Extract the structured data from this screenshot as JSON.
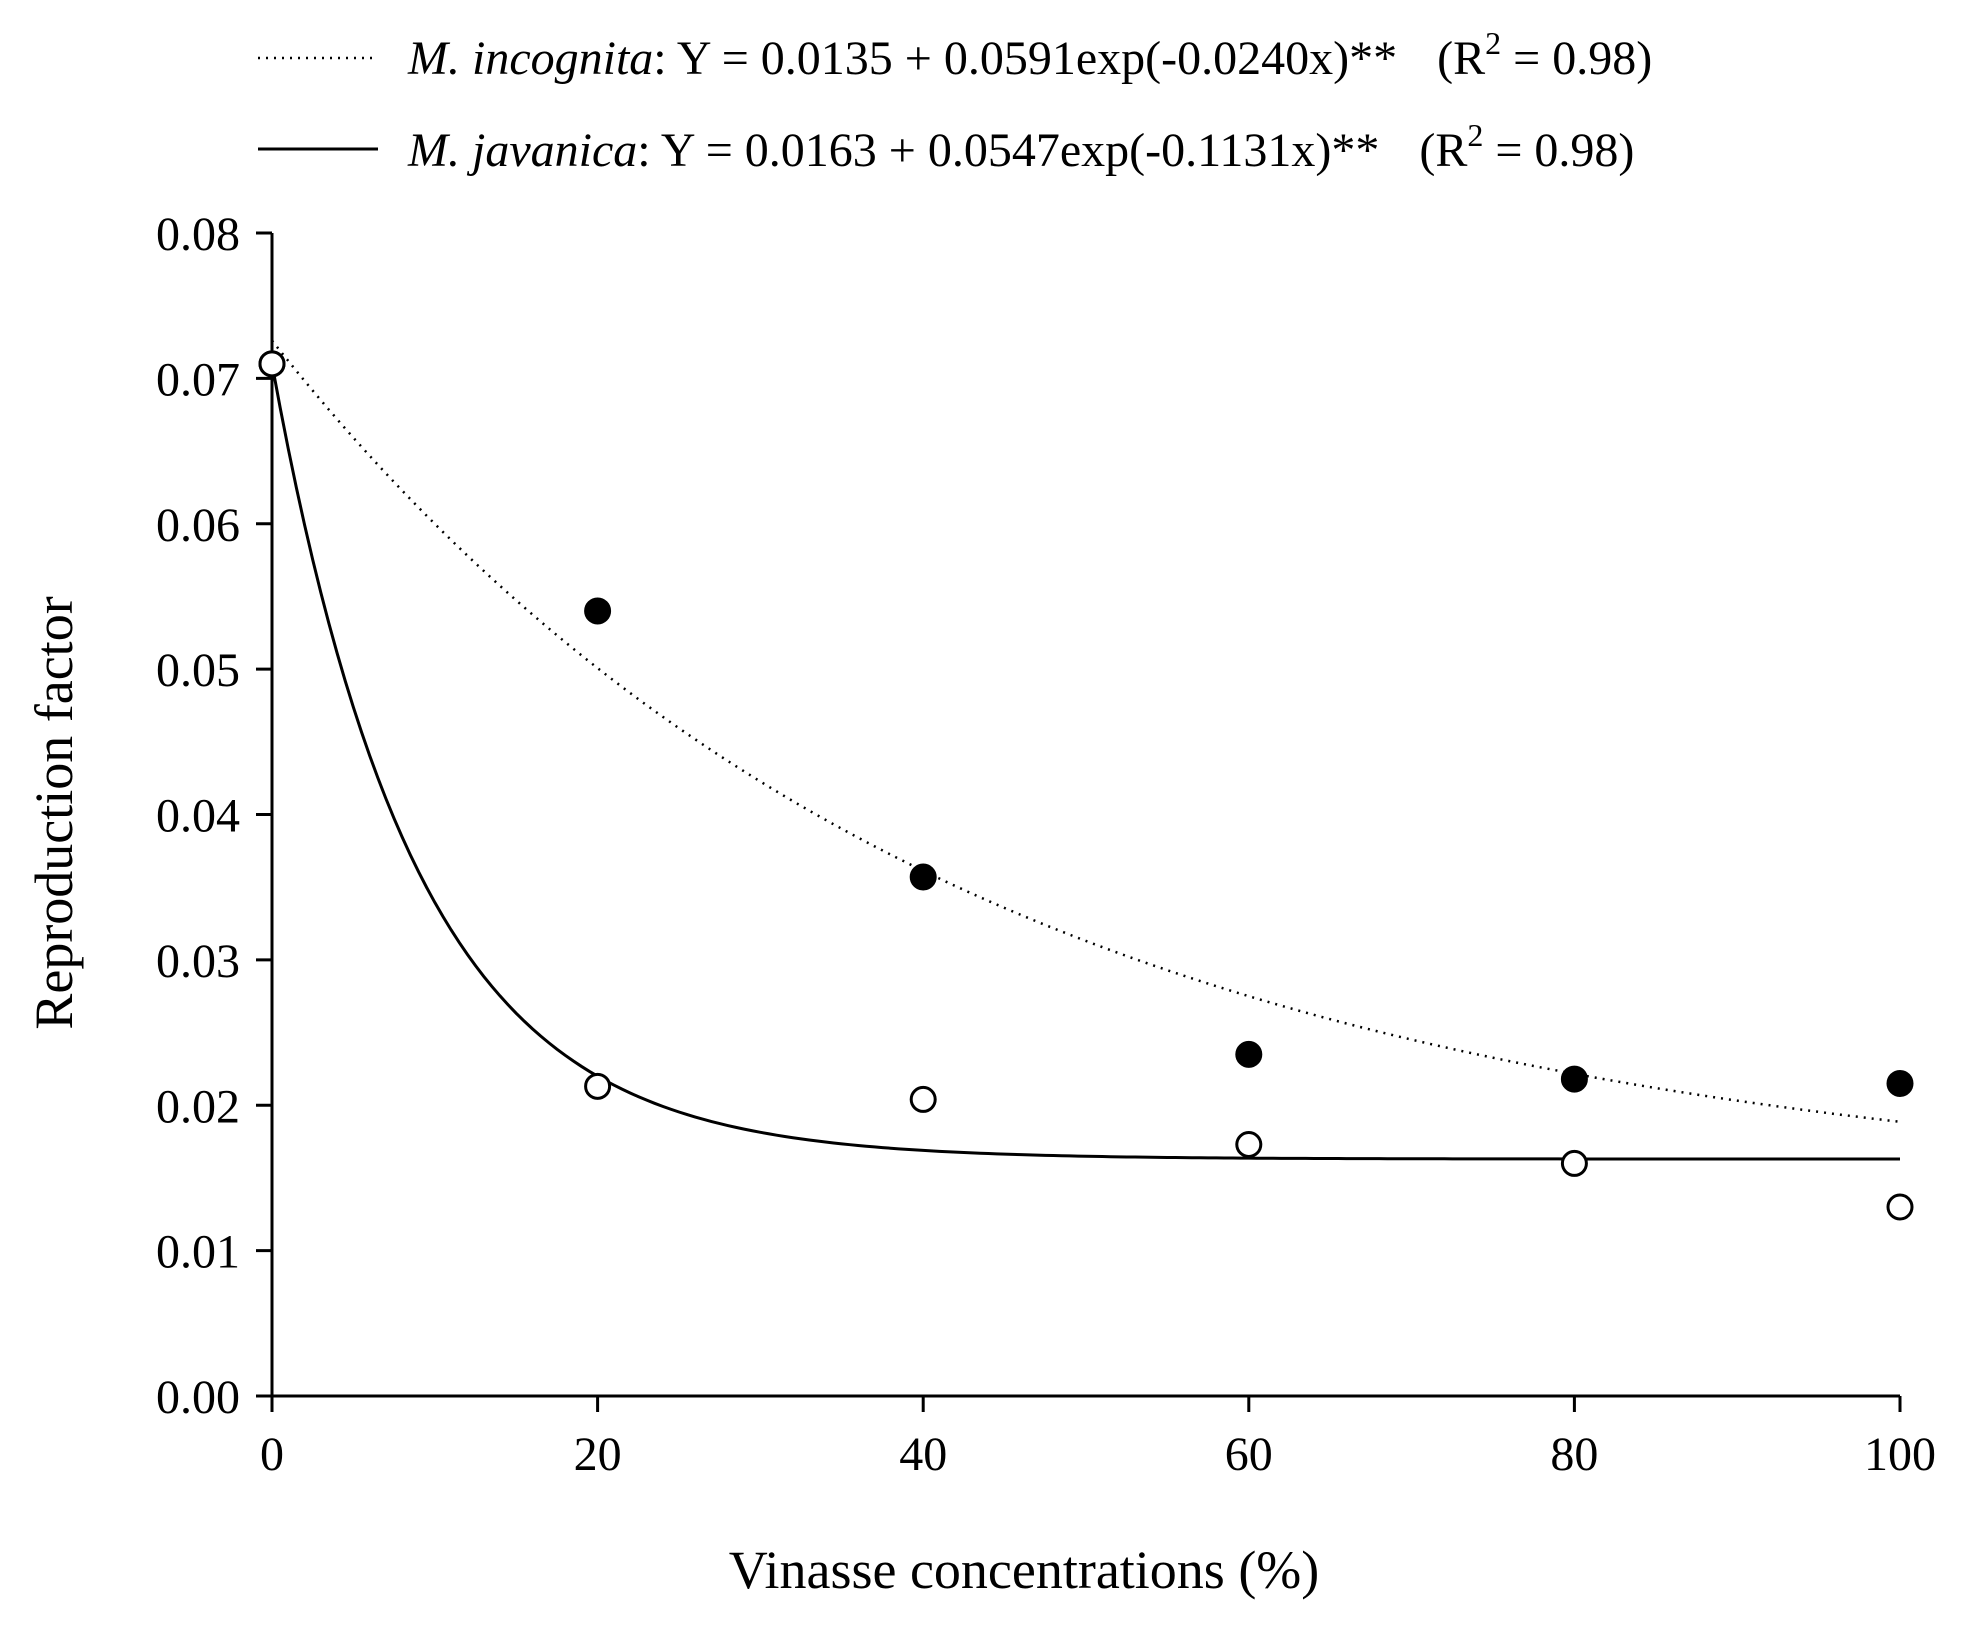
{
  "chart_data": {
    "type": "scatter",
    "xlabel": "Vinasse concentrations (%)",
    "ylabel": "Reproduction factor",
    "xlim": [
      0,
      100
    ],
    "ylim": [
      0,
      0.08
    ],
    "x_ticks": [
      "0",
      "20",
      "40",
      "60",
      "80",
      "100"
    ],
    "y_ticks": [
      "0.00",
      "0.01",
      "0.02",
      "0.03",
      "0.04",
      "0.05",
      "0.06",
      "0.07",
      "0.08"
    ],
    "grid": false,
    "legend_position": "top",
    "series": [
      {
        "name": "M. incognita",
        "marker": "filled-circle",
        "line_style": "dotted",
        "equation": ": Y = 0.0135 + 0.0591exp(-0.0240x)**",
        "r2_prefix": "(R",
        "r2_exponent": "2",
        "r2_suffix": " = 0.98)",
        "fit": {
          "a": 0.0135,
          "b": 0.0591,
          "k": -0.024
        },
        "x": [
          0,
          20,
          40,
          60,
          80,
          100
        ],
        "y": [
          0.071,
          0.054,
          0.0357,
          0.0235,
          0.0218,
          0.0215
        ]
      },
      {
        "name": "M. javanica",
        "marker": "open-circle",
        "line_style": "solid",
        "equation": ":  Y = 0.0163 + 0.0547exp(-0.1131x)**",
        "r2_prefix": "(R",
        "r2_exponent": "2",
        "r2_suffix": " = 0.98)",
        "fit": {
          "a": 0.0163,
          "b": 0.0547,
          "k": -0.1131
        },
        "x": [
          0,
          20,
          40,
          60,
          80,
          100
        ],
        "y": [
          0.071,
          0.0213,
          0.0204,
          0.0173,
          0.016,
          0.013
        ]
      }
    ]
  }
}
